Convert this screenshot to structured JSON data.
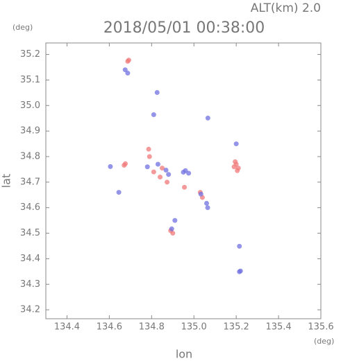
{
  "chart_data": {
    "type": "scatter",
    "title": "2018/05/01 00:38:00",
    "subtitle": "ALT(km) 2.0",
    "y_unit": "(deg)",
    "x_unit": "(deg)",
    "xlabel": "lon",
    "ylabel": "lat",
    "xlim": [
      134.3,
      135.6
    ],
    "ylim": [
      34.165,
      35.245
    ],
    "xticks": [
      134.4,
      134.6,
      134.8,
      {
        "value": 135.0,
        "label": "135.0"
      },
      135.2,
      135.4,
      135.6
    ],
    "yticks": [
      34.2,
      34.3,
      34.4,
      34.5,
      34.6,
      34.7,
      34.8,
      34.9,
      {
        "value": 35.0,
        "label": "35.0"
      },
      35.1,
      35.2
    ],
    "series": [
      {
        "color": "#f07878",
        "x": [
          134.687,
          134.692,
          134.67,
          134.676,
          134.786,
          134.79,
          134.85,
          134.873,
          134.955,
          135.03,
          135.04,
          134.89,
          134.9,
          135.19,
          135.2,
          135.21,
          135.205,
          135.195,
          134.81,
          134.84
        ],
        "y": [
          35.173,
          35.178,
          34.766,
          34.772,
          34.829,
          34.8,
          34.755,
          34.7,
          34.68,
          34.66,
          34.64,
          34.51,
          34.5,
          34.76,
          34.77,
          34.755,
          34.745,
          34.78,
          34.74,
          34.72
        ]
      },
      {
        "color": "#7070e0",
        "x": [
          134.687,
          134.675,
          134.826,
          134.81,
          134.605,
          134.868,
          134.88,
          134.95,
          134.96,
          134.975,
          135.033,
          135.06,
          135.065,
          134.895,
          134.91,
          135.215,
          135.22,
          135.215,
          135.066,
          135.2,
          134.83,
          134.78,
          134.645
        ],
        "y": [
          35.127,
          35.14,
          35.051,
          34.964,
          34.761,
          34.747,
          34.73,
          34.739,
          34.745,
          34.735,
          34.653,
          34.617,
          34.6,
          34.517,
          34.55,
          34.349,
          34.352,
          34.449,
          34.951,
          34.85,
          34.77,
          34.76,
          34.66
        ]
      }
    ],
    "grid": false
  }
}
